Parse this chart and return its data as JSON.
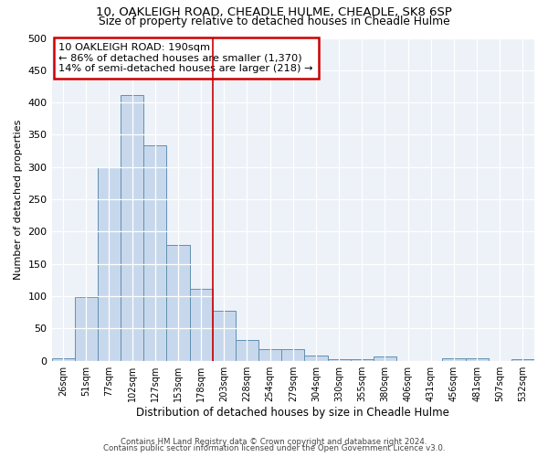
{
  "title1": "10, OAKLEIGH ROAD, CHEADLE HULME, CHEADLE, SK8 6SP",
  "title2": "Size of property relative to detached houses in Cheadle Hulme",
  "xlabel": "Distribution of detached houses by size in Cheadle Hulme",
  "ylabel": "Number of detached properties",
  "bar_color": "#c8d8ec",
  "bar_edge_color": "#6090b0",
  "categories": [
    "26sqm",
    "51sqm",
    "77sqm",
    "102sqm",
    "127sqm",
    "153sqm",
    "178sqm",
    "203sqm",
    "228sqm",
    "254sqm",
    "279sqm",
    "304sqm",
    "330sqm",
    "355sqm",
    "380sqm",
    "406sqm",
    "431sqm",
    "456sqm",
    "481sqm",
    "507sqm",
    "532sqm"
  ],
  "values": [
    4,
    99,
    300,
    411,
    333,
    180,
    111,
    77,
    32,
    18,
    18,
    8,
    3,
    3,
    6,
    0,
    0,
    4,
    4,
    0,
    2
  ],
  "vline_x": 6.5,
  "annotation_line1": "10 OAKLEIGH ROAD: 190sqm",
  "annotation_line2": "← 86% of detached houses are smaller (1,370)",
  "annotation_line3": "14% of semi-detached houses are larger (218) →",
  "annotation_box_color": "#ffffff",
  "annotation_box_edge": "#cc0000",
  "vline_color": "#cc0000",
  "ylim": [
    0,
    500
  ],
  "yticks": [
    0,
    50,
    100,
    150,
    200,
    250,
    300,
    350,
    400,
    450,
    500
  ],
  "footer1": "Contains HM Land Registry data © Crown copyright and database right 2024.",
  "footer2": "Contains public sector information licensed under the Open Government Licence v3.0.",
  "bg_color": "#edf1f8"
}
